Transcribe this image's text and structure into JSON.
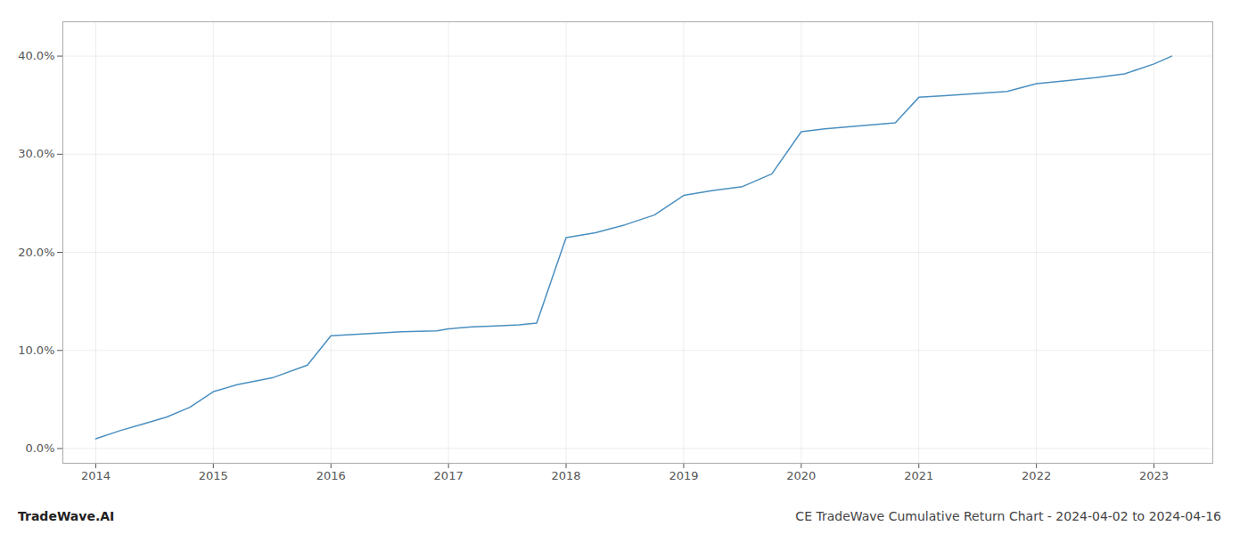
{
  "chart_data": {
    "type": "line",
    "title": "CE TradeWave Cumulative Return Chart - 2024-04-02 to 2024-04-16",
    "annotations": [
      "TradeWave.AI"
    ],
    "x": [
      2014.0,
      2014.2,
      2014.4,
      2014.6,
      2014.8,
      2015.0,
      2015.2,
      2015.5,
      2015.8,
      2016.0,
      2016.3,
      2016.6,
      2016.9,
      2017.0,
      2017.2,
      2017.4,
      2017.6,
      2017.75,
      2018.0,
      2018.25,
      2018.5,
      2018.75,
      2019.0,
      2019.25,
      2019.5,
      2019.75,
      2020.0,
      2020.2,
      2020.4,
      2020.6,
      2020.8,
      2021.0,
      2021.25,
      2021.5,
      2021.75,
      2022.0,
      2022.25,
      2022.5,
      2022.75,
      2023.0,
      2023.15
    ],
    "values": [
      0.01,
      0.018,
      0.025,
      0.032,
      0.042,
      0.058,
      0.065,
      0.072,
      0.085,
      0.115,
      0.117,
      0.119,
      0.12,
      0.122,
      0.124,
      0.125,
      0.126,
      0.128,
      0.215,
      0.22,
      0.228,
      0.238,
      0.258,
      0.263,
      0.267,
      0.28,
      0.323,
      0.326,
      0.328,
      0.33,
      0.332,
      0.358,
      0.36,
      0.362,
      0.364,
      0.372,
      0.375,
      0.378,
      0.382,
      0.392,
      0.4
    ],
    "color": "#4a8fc0",
    "xlim": [
      2013.72,
      2023.5
    ],
    "xticks": [
      2014,
      2015,
      2016,
      2017,
      2018,
      2019,
      2020,
      2021,
      2022,
      2023
    ],
    "ylim": [
      -0.015,
      0.435
    ],
    "yticks": [
      {
        "value": 0.0,
        "label": "0.0%"
      },
      {
        "value": 0.1,
        "label": "10.0%"
      },
      {
        "value": 0.2,
        "label": "20.0%"
      },
      {
        "value": 0.3,
        "label": "30.0%"
      },
      {
        "value": 0.4,
        "label": "40.0%"
      }
    ],
    "grid": true
  }
}
